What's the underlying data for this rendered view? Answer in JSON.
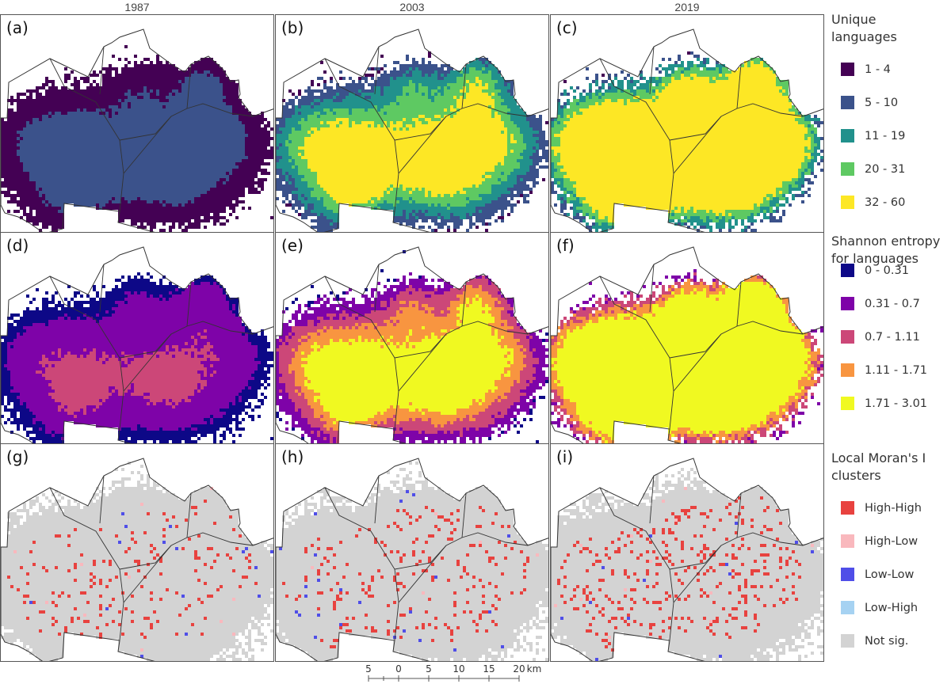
{
  "columns": [
    {
      "year": "1987"
    },
    {
      "year": "2003"
    },
    {
      "year": "2019"
    }
  ],
  "panels": [
    {
      "label": "(a)",
      "variable": "unique_languages",
      "year": "1987",
      "level": 0.15
    },
    {
      "label": "(b)",
      "variable": "unique_languages",
      "year": "2003",
      "level": 0.45
    },
    {
      "label": "(c)",
      "variable": "unique_languages",
      "year": "2019",
      "level": 0.75
    },
    {
      "label": "(d)",
      "variable": "shannon_entropy",
      "year": "1987",
      "level": 0.2
    },
    {
      "label": "(e)",
      "variable": "shannon_entropy",
      "year": "2003",
      "level": 0.45
    },
    {
      "label": "(f)",
      "variable": "shannon_entropy",
      "year": "2019",
      "level": 0.8
    },
    {
      "label": "(g)",
      "variable": "morans_clusters",
      "year": "1987",
      "level": 0.2
    },
    {
      "label": "(h)",
      "variable": "morans_clusters",
      "year": "2003",
      "level": 0.45
    },
    {
      "label": "(i)",
      "variable": "morans_clusters",
      "year": "2019",
      "level": 0.8
    }
  ],
  "legends": {
    "unique_languages": {
      "title_line1": "Unique",
      "title_line2": "languages",
      "classes": [
        {
          "label": "1 - 4",
          "color": "#440154"
        },
        {
          "label": "5 - 10",
          "color": "#3b528b"
        },
        {
          "label": "11 - 19",
          "color": "#21918c"
        },
        {
          "label": "20 - 31",
          "color": "#5ec962"
        },
        {
          "label": "32 - 60",
          "color": "#fde725"
        }
      ]
    },
    "shannon_entropy": {
      "title_line1": "Shannon entropy",
      "title_line2": "for languages",
      "classes": [
        {
          "label": "0 - 0.31",
          "color": "#0d0887"
        },
        {
          "label": "0.31 - 0.7",
          "color": "#7e03a8"
        },
        {
          "label": "0.7 - 1.11",
          "color": "#cc4778"
        },
        {
          "label": "1.11 - 1.71",
          "color": "#f89540"
        },
        {
          "label": "1.71 - 3.01",
          "color": "#f0f921"
        }
      ]
    },
    "morans_clusters": {
      "title_line1": "Local Moran's I",
      "title_line2": "clusters",
      "classes": [
        {
          "label": "High-High",
          "color": "#e8423f"
        },
        {
          "label": "High-Low",
          "color": "#f9b8bd"
        },
        {
          "label": "Low-Low",
          "color": "#4f4ee8"
        },
        {
          "label": "Low-High",
          "color": "#a6d2f2"
        },
        {
          "label": "Not sig.",
          "color": "#d3d3d3"
        }
      ]
    }
  },
  "scale_bar": {
    "ticks": [
      "5",
      "0",
      "5",
      "10",
      "15",
      "20"
    ],
    "unit": "km"
  },
  "colors": {
    "boundary": "#333333",
    "panel_border": "#555555",
    "no_data": "#ffffff"
  }
}
